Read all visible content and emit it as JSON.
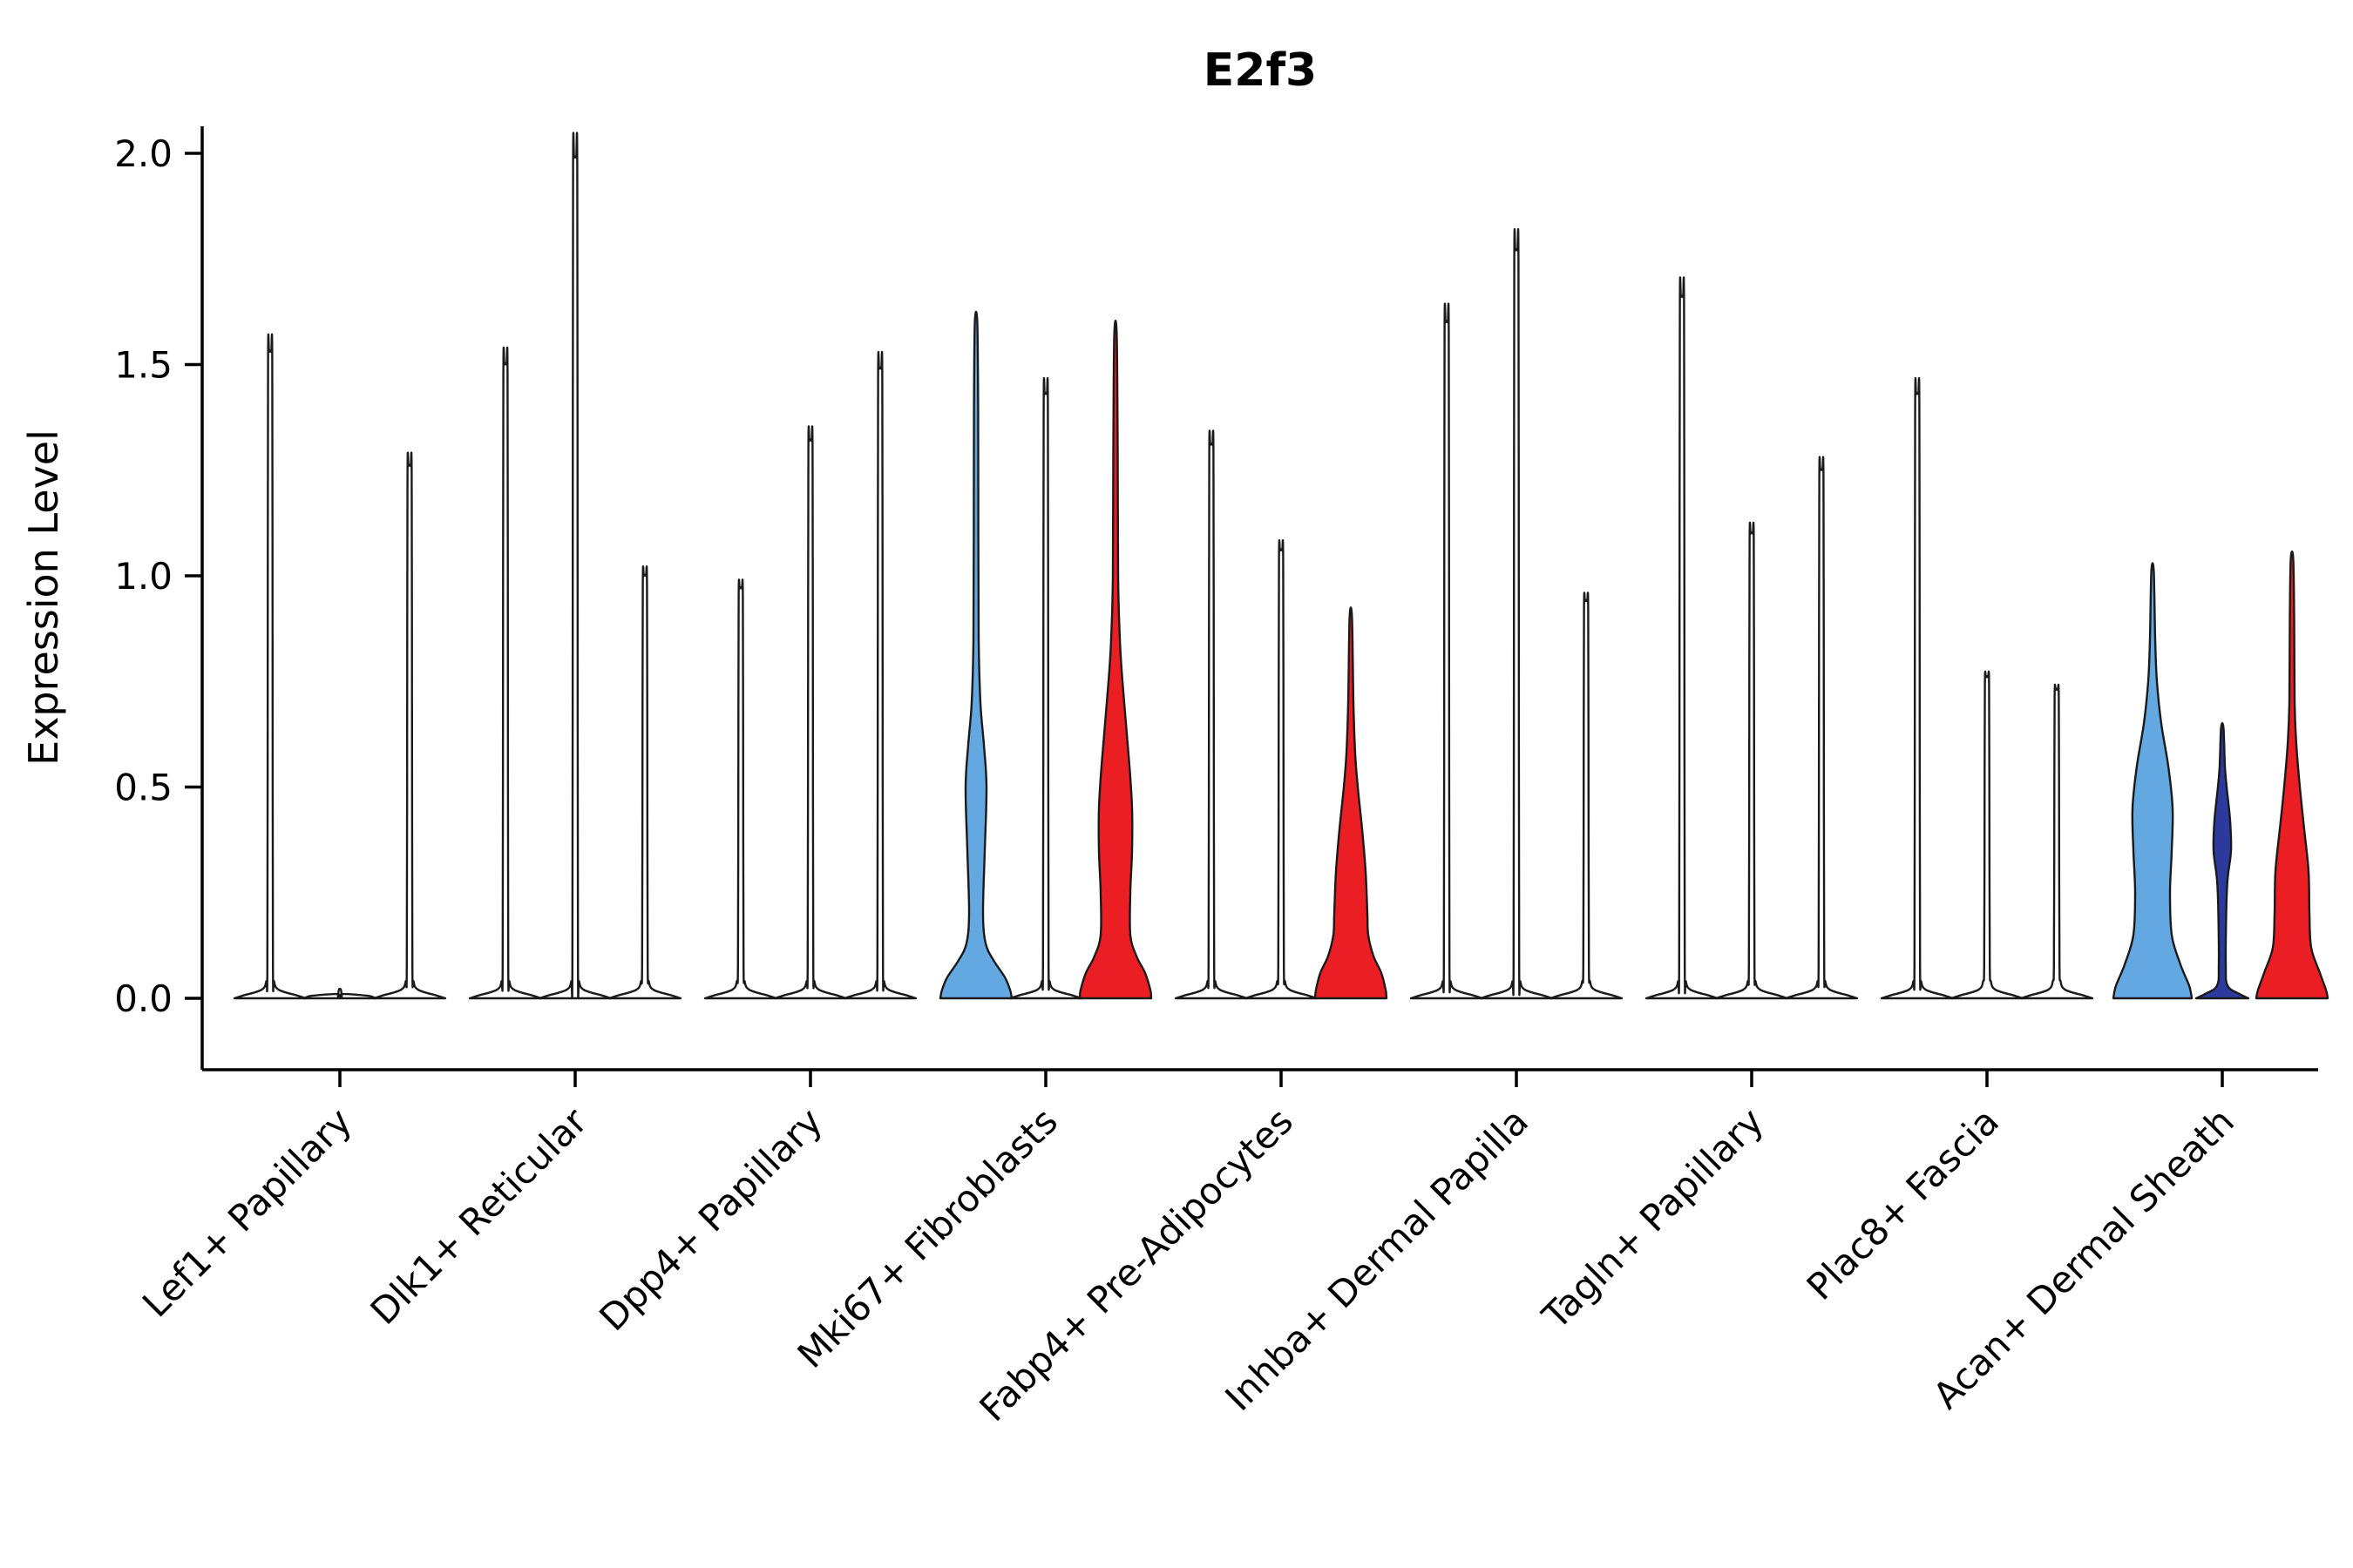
{
  "chart_data": {
    "type": "violin",
    "title": "E2f3",
    "ylabel": "Expression Level",
    "xlabel": "",
    "ylim": [
      0,
      2.05
    ],
    "yticks": [
      0.0,
      0.5,
      1.0,
      1.5,
      2.0
    ],
    "ytick_labels": [
      "0.0",
      "0.5",
      "1.0",
      "1.5",
      "2.0"
    ],
    "legend": "none",
    "grid": false,
    "colors": {
      "white": "#FFFFFF",
      "blue": "#64A8E1",
      "darkblue": "#2B3A9C",
      "red": "#EB1E24"
    },
    "categories": [
      "Lef1+ Papillary",
      "Dlk1+ Reticular",
      "Dpp4+ Papillary",
      "Mki67+ Fibroblasts",
      "Fabp4+ Pre-Adipocytes",
      "Inhba+ Dermal Papilla",
      "Tagln+ Papillary",
      "Plac8+ Fascia",
      "Acan+ Dermal Sheath"
    ],
    "groups": [
      {
        "category": "Lef1+ Papillary",
        "violins": [
          {
            "max": 1.53,
            "color": "white"
          },
          {
            "max": 0.02,
            "color": "white"
          },
          {
            "max": 1.26,
            "color": "white"
          }
        ]
      },
      {
        "category": "Dlk1+ Reticular",
        "violins": [
          {
            "max": 1.5,
            "color": "white"
          },
          {
            "max": 1.99,
            "color": "white"
          },
          {
            "max": 1.0,
            "color": "white"
          }
        ]
      },
      {
        "category": "Dpp4+ Papillary",
        "violins": [
          {
            "max": 0.97,
            "color": "white"
          },
          {
            "max": 1.32,
            "color": "white"
          },
          {
            "max": 1.49,
            "color": "white"
          }
        ]
      },
      {
        "category": "Mki67+ Fibroblasts",
        "violins": [
          {
            "max": 1.6,
            "color": "blue",
            "profile": [
              [
                0,
                41
              ],
              [
                0.02,
                39
              ],
              [
                0.05,
                33
              ],
              [
                0.09,
                20
              ],
              [
                0.13,
                11
              ],
              [
                0.2,
                8
              ],
              [
                0.35,
                10
              ],
              [
                0.5,
                12
              ],
              [
                0.6,
                9
              ],
              [
                0.7,
                5
              ],
              [
                0.85,
                3
              ],
              [
                1.1,
                2.6
              ],
              [
                1.4,
                2.4
              ],
              [
                1.6,
                1.4
              ]
            ]
          },
          {
            "max": 1.43,
            "color": "white"
          },
          {
            "max": 1.57,
            "color": "red",
            "profile": [
              [
                0,
                41
              ],
              [
                0.02,
                40
              ],
              [
                0.06,
                34
              ],
              [
                0.1,
                24
              ],
              [
                0.15,
                17
              ],
              [
                0.25,
                17
              ],
              [
                0.35,
                19
              ],
              [
                0.45,
                19
              ],
              [
                0.55,
                16
              ],
              [
                0.65,
                12
              ],
              [
                0.75,
                8
              ],
              [
                0.85,
                5
              ],
              [
                1.0,
                3
              ],
              [
                1.3,
                2.5
              ],
              [
                1.57,
                1.4
              ]
            ]
          }
        ]
      },
      {
        "category": "Fabp4+ Pre-Adipocytes",
        "violins": [
          {
            "max": 1.31,
            "color": "white"
          },
          {
            "max": 1.06,
            "color": "white"
          },
          {
            "max": 0.9,
            "color": "red",
            "profile": [
              [
                0,
                41
              ],
              [
                0.02,
                40
              ],
              [
                0.06,
                35
              ],
              [
                0.1,
                26
              ],
              [
                0.15,
                20
              ],
              [
                0.2,
                19
              ],
              [
                0.3,
                17
              ],
              [
                0.4,
                13
              ],
              [
                0.5,
                8
              ],
              [
                0.58,
                5
              ],
              [
                0.7,
                3
              ],
              [
                0.9,
                1.4
              ]
            ]
          }
        ]
      },
      {
        "category": "Inhba+ Dermal Papilla",
        "violins": [
          {
            "max": 1.6,
            "color": "white"
          },
          {
            "max": 1.77,
            "color": "white"
          },
          {
            "max": 0.94,
            "color": "white"
          }
        ]
      },
      {
        "category": "Tagln+ Papillary",
        "violins": [
          {
            "max": 1.66,
            "color": "white"
          },
          {
            "max": 1.1,
            "color": "white"
          },
          {
            "max": 1.25,
            "color": "white"
          }
        ]
      },
      {
        "category": "Plac8+ Fascia",
        "violins": [
          {
            "max": 1.43,
            "color": "white"
          },
          {
            "max": 0.76,
            "color": "white"
          },
          {
            "max": 0.73,
            "color": "white"
          }
        ]
      },
      {
        "category": "Acan+ Dermal Sheath",
        "violins": [
          {
            "max": 1.01,
            "color": "blue",
            "profile": [
              [
                0,
                45
              ],
              [
                0.03,
                42
              ],
              [
                0.08,
                32
              ],
              [
                0.15,
                22
              ],
              [
                0.25,
                20
              ],
              [
                0.35,
                22
              ],
              [
                0.45,
                23
              ],
              [
                0.55,
                18
              ],
              [
                0.65,
                10
              ],
              [
                0.75,
                5
              ],
              [
                0.85,
                3
              ],
              [
                1.01,
                1.4
              ]
            ]
          },
          {
            "max": 0.64,
            "color": "darkblue",
            "profile": [
              [
                0,
                30
              ],
              [
                0.01,
                20
              ],
              [
                0.03,
                6
              ],
              [
                0.08,
                4
              ],
              [
                0.2,
                4.5
              ],
              [
                0.28,
                6
              ],
              [
                0.35,
                10
              ],
              [
                0.42,
                9
              ],
              [
                0.5,
                5
              ],
              [
                0.55,
                3
              ],
              [
                0.64,
                1.4
              ]
            ]
          },
          {
            "max": 1.04,
            "color": "red",
            "profile": [
              [
                0,
                41
              ],
              [
                0.02,
                39
              ],
              [
                0.06,
                32
              ],
              [
                0.12,
                22
              ],
              [
                0.2,
                20
              ],
              [
                0.3,
                19
              ],
              [
                0.4,
                14
              ],
              [
                0.5,
                9
              ],
              [
                0.6,
                5
              ],
              [
                0.7,
                3
              ],
              [
                0.9,
                2.5
              ],
              [
                1.04,
                1.4
              ]
            ]
          }
        ]
      }
    ]
  }
}
